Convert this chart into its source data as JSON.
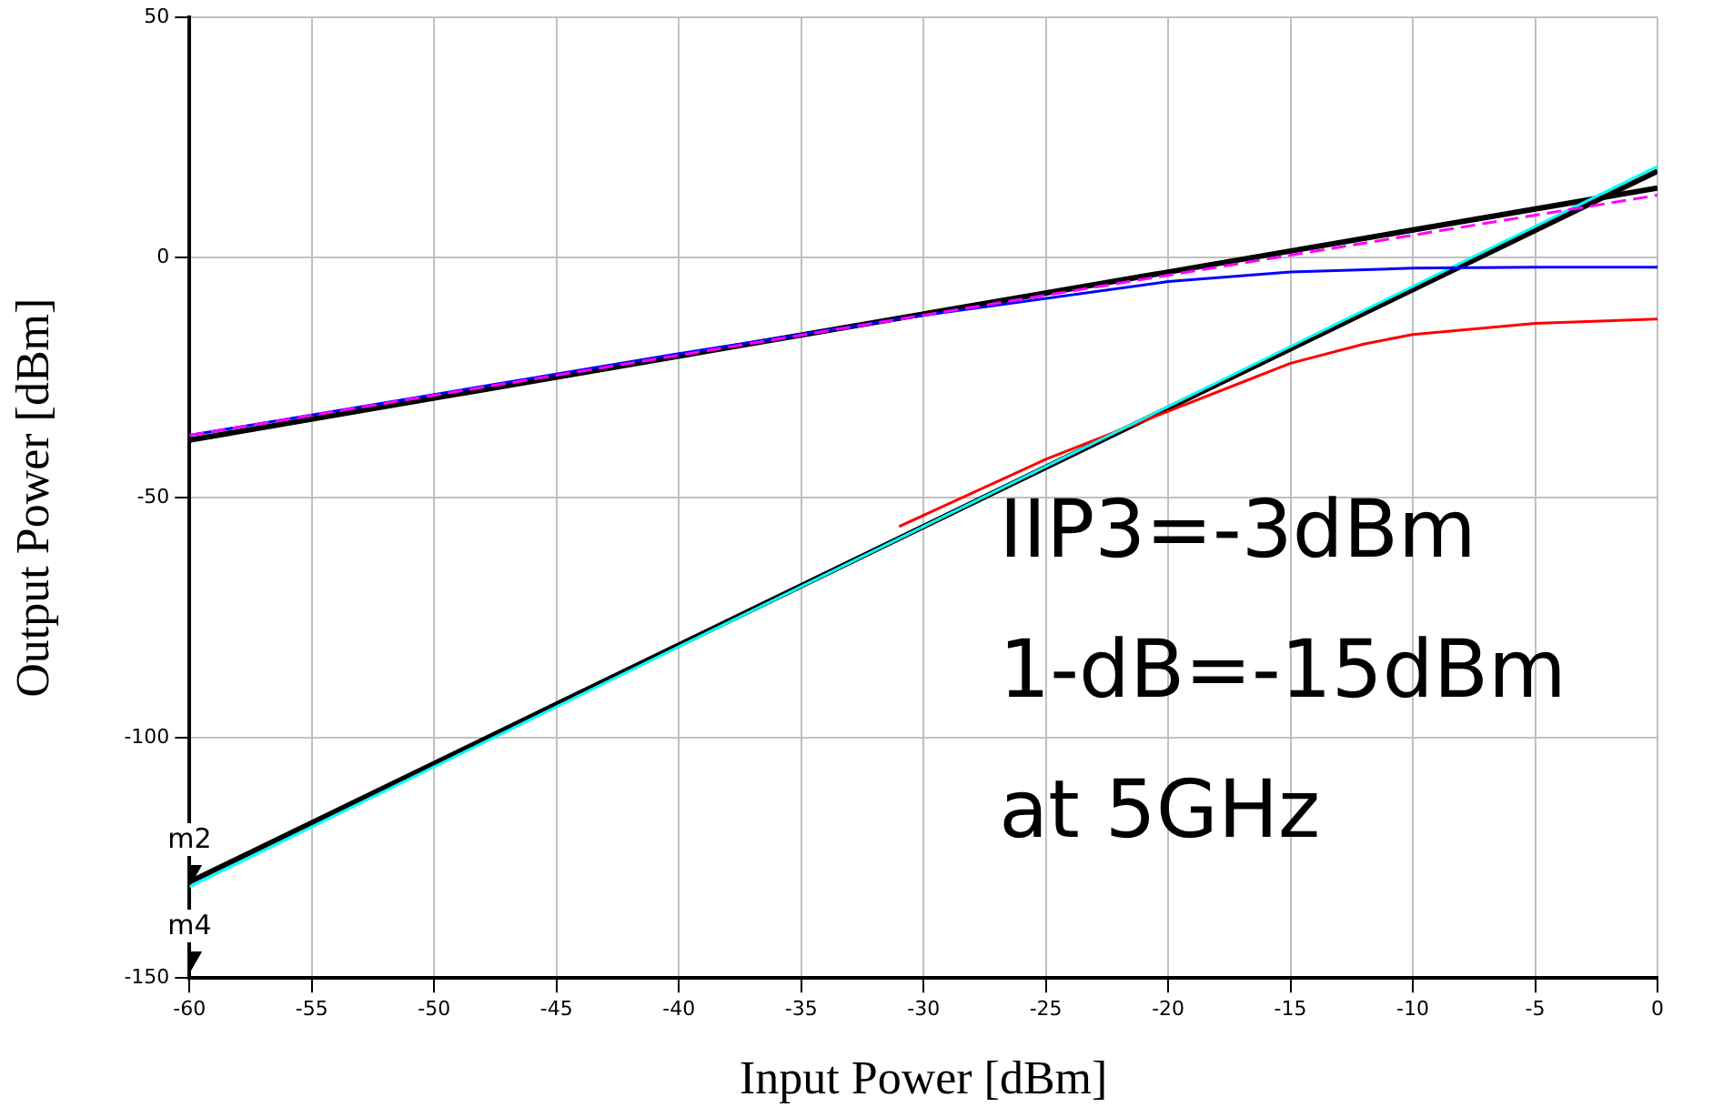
{
  "chart_data": {
    "type": "line",
    "xlabel": "Input Power [dBm]",
    "ylabel": "Output Power [dBm]",
    "xlim": [
      -60,
      0
    ],
    "xticks": [
      -60,
      -55,
      -50,
      -45,
      -40,
      -35,
      -30,
      -25,
      -20,
      -15,
      -10,
      -5,
      0
    ],
    "ylim": [
      -150,
      50
    ],
    "yticks": [
      -150,
      -100,
      -50,
      0,
      50
    ],
    "grid": true,
    "legend": false,
    "marker": "none",
    "annotations": [
      "IIP3=-3dBm",
      "1-dB=-15dBm",
      "at 5GHz"
    ],
    "series": [
      {
        "color": "#ff00ff",
        "line_style": "dashed",
        "x": [
          -60,
          0
        ],
        "values": [
          -37,
          13
        ]
      },
      {
        "color": "#0000ff",
        "x": [
          -60,
          -40,
          -30,
          -20,
          -15,
          -10,
          -5,
          0
        ],
        "values": [
          -37,
          -20,
          -12,
          -5,
          -3,
          -2.2,
          -2,
          -2
        ]
      },
      {
        "color": "#00ffff",
        "x": [
          -60,
          0
        ],
        "values": [
          -131,
          19
        ]
      },
      {
        "color": "#ff0000",
        "x": [
          -31,
          -25,
          -20,
          -17,
          -15,
          -12,
          -10,
          -5,
          0
        ],
        "values": [
          -56,
          -42,
          -32,
          -26,
          -22,
          -18,
          -16,
          -13.7,
          -12.8
        ]
      },
      {
        "color": "#000000",
        "x": [
          -60,
          0
        ],
        "values": [
          -38,
          14.5
        ]
      },
      {
        "color": "#000000",
        "x": [
          -60,
          0
        ],
        "values": [
          -130,
          18
        ]
      },
      {
        "type": "scatter",
        "color": "#000000",
        "marker": "triangle",
        "x": [
          -60,
          -60
        ],
        "values": [
          -128,
          -146
        ],
        "value_labels": [
          "m2",
          "m4"
        ]
      }
    ]
  }
}
